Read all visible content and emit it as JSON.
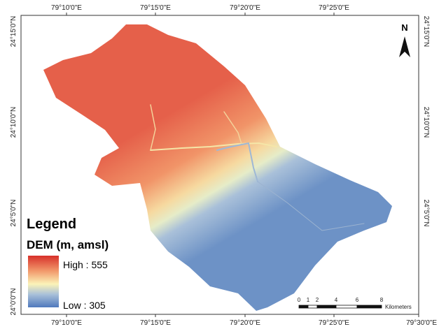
{
  "map": {
    "top_labels": [
      "79°10'0\"E",
      "79°15'0\"E",
      "79°20'0\"E",
      "79°25'0\"E"
    ],
    "bottom_labels": [
      "79°10'0\"E",
      "79°15'0\"E",
      "79°20'0\"E",
      "79°25'0\"E",
      "79°30'0\"E"
    ],
    "left_labels": [
      "24°15'0\"N",
      "24°10'0\"N",
      "24°5'0\"N",
      "24°0'0\"N"
    ],
    "right_labels": [
      "24°15'0\"N",
      "24°10'0\"N",
      "24°5'0\"N"
    ],
    "north": "N",
    "legend": {
      "title": "Legend",
      "subtitle": "DEM (m, amsl)",
      "high": "High : 555",
      "low": "Low : 305"
    },
    "scale_bar": {
      "ticks": [
        "0",
        "1",
        "2",
        "4",
        "6",
        "8"
      ],
      "unit": "Kilometers"
    }
  }
}
